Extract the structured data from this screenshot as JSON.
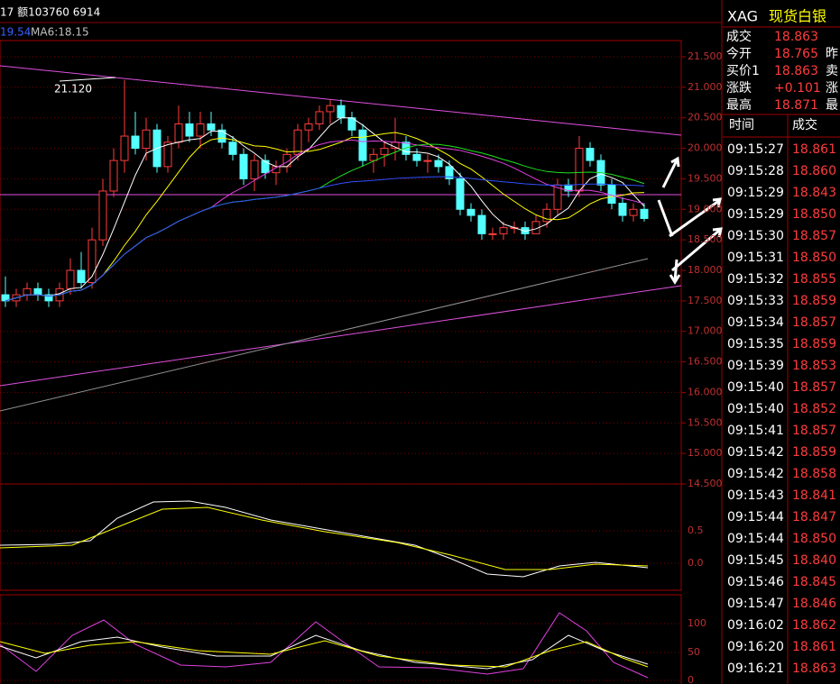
{
  "top": {
    "volume_text": "17 额103760 6914",
    "ma_blue": "19.54",
    "ma6": "MA6:18.15"
  },
  "price_chart": {
    "high_label": "21.120",
    "yticks": [
      {
        "value": 21.5,
        "label": "21.500"
      },
      {
        "value": 21.0,
        "label": "21.000"
      },
      {
        "value": 20.5,
        "label": "20.500"
      },
      {
        "value": 20.0,
        "label": "20.000"
      },
      {
        "value": 19.5,
        "label": "19.500"
      },
      {
        "value": 19.0,
        "label": "19.000"
      },
      {
        "value": 18.5,
        "label": "18.500"
      },
      {
        "value": 18.0,
        "label": "18.000"
      },
      {
        "value": 17.5,
        "label": "17.500"
      },
      {
        "value": 17.0,
        "label": "17.000"
      },
      {
        "value": 16.5,
        "label": "16.500"
      },
      {
        "value": 16.0,
        "label": "16.000"
      },
      {
        "value": 15.5,
        "label": "15.500"
      },
      {
        "value": 15.0,
        "label": "15.000"
      },
      {
        "value": 14.5,
        "label": "14.500"
      }
    ],
    "candles": [
      [
        17.6,
        17.9,
        17.4,
        17.5
      ],
      [
        17.5,
        17.7,
        17.4,
        17.6
      ],
      [
        17.6,
        17.8,
        17.5,
        17.7
      ],
      [
        17.7,
        17.8,
        17.5,
        17.6
      ],
      [
        17.6,
        17.7,
        17.4,
        17.5
      ],
      [
        17.5,
        17.8,
        17.4,
        17.7
      ],
      [
        17.7,
        18.2,
        17.6,
        18.0
      ],
      [
        18.0,
        18.3,
        17.7,
        17.8
      ],
      [
        17.8,
        18.7,
        17.7,
        18.5
      ],
      [
        18.5,
        19.5,
        18.4,
        19.3
      ],
      [
        19.3,
        20.0,
        19.2,
        19.8
      ],
      [
        19.8,
        21.12,
        19.6,
        20.2
      ],
      [
        20.2,
        20.6,
        19.9,
        20.0
      ],
      [
        20.0,
        20.5,
        19.8,
        20.3
      ],
      [
        20.3,
        20.4,
        19.6,
        19.7
      ],
      [
        19.7,
        20.2,
        19.6,
        20.1
      ],
      [
        20.1,
        20.7,
        20.0,
        20.4
      ],
      [
        20.4,
        20.6,
        20.1,
        20.2
      ],
      [
        20.2,
        20.6,
        20.0,
        20.4
      ],
      [
        20.4,
        20.6,
        20.2,
        20.3
      ],
      [
        20.3,
        20.4,
        20.0,
        20.1
      ],
      [
        20.1,
        20.2,
        19.8,
        19.9
      ],
      [
        19.9,
        20.0,
        19.4,
        19.5
      ],
      [
        19.5,
        19.9,
        19.3,
        19.8
      ],
      [
        19.8,
        19.9,
        19.5,
        19.6
      ],
      [
        19.6,
        19.8,
        19.4,
        19.7
      ],
      [
        19.7,
        20.0,
        19.6,
        19.9
      ],
      [
        19.9,
        20.4,
        19.8,
        20.3
      ],
      [
        20.3,
        20.5,
        20.1,
        20.4
      ],
      [
        20.4,
        20.7,
        20.3,
        20.6
      ],
      [
        20.6,
        20.8,
        20.4,
        20.7
      ],
      [
        20.7,
        20.8,
        20.4,
        20.5
      ],
      [
        20.5,
        20.6,
        20.2,
        20.3
      ],
      [
        20.3,
        20.4,
        19.7,
        19.8
      ],
      [
        19.8,
        20.0,
        19.6,
        19.9
      ],
      [
        19.9,
        20.1,
        19.7,
        20.0
      ],
      [
        20.0,
        20.5,
        19.8,
        20.1
      ],
      [
        20.1,
        20.2,
        19.8,
        19.9
      ],
      [
        19.9,
        20.0,
        19.7,
        19.8
      ],
      [
        19.8,
        19.9,
        19.6,
        19.8
      ],
      [
        19.8,
        19.9,
        19.6,
        19.7
      ],
      [
        19.7,
        19.8,
        19.4,
        19.5
      ],
      [
        19.5,
        19.6,
        18.9,
        19.0
      ],
      [
        19.0,
        19.1,
        18.8,
        18.9
      ],
      [
        18.9,
        19.0,
        18.5,
        18.6
      ],
      [
        18.6,
        18.7,
        18.5,
        18.6
      ],
      [
        18.6,
        18.8,
        18.5,
        18.7
      ],
      [
        18.7,
        18.8,
        18.6,
        18.7
      ],
      [
        18.7,
        18.8,
        18.5,
        18.6
      ],
      [
        18.6,
        18.9,
        18.6,
        18.8
      ],
      [
        18.8,
        19.1,
        18.7,
        19.0
      ],
      [
        19.0,
        19.5,
        18.9,
        19.4
      ],
      [
        19.4,
        19.5,
        19.2,
        19.3
      ],
      [
        19.3,
        20.2,
        19.2,
        20.0
      ],
      [
        20.0,
        20.1,
        19.7,
        19.8
      ],
      [
        19.8,
        19.9,
        19.3,
        19.4
      ],
      [
        19.4,
        19.5,
        19.0,
        19.1
      ],
      [
        19.1,
        19.2,
        18.8,
        18.9
      ],
      [
        18.9,
        19.1,
        18.8,
        19.0
      ],
      [
        19.0,
        19.1,
        18.8,
        18.85
      ]
    ]
  },
  "macd_panel": {
    "ticks": [
      "0.5",
      "0.0"
    ]
  },
  "kdj_panel": {
    "ticks": [
      "100",
      "50",
      "0"
    ]
  },
  "quote": {
    "symbol": "XAG",
    "name": "现货白银",
    "rows": [
      [
        "成交",
        "18.863",
        ""
      ],
      [
        "今开",
        "18.765",
        "昨"
      ],
      [
        "买价1",
        "18.863",
        "卖"
      ],
      [
        "涨跌",
        "+0.101",
        "涨"
      ],
      [
        "最高",
        "18.871",
        "最"
      ]
    ]
  },
  "trades": {
    "header": [
      "时间",
      "成交"
    ],
    "rows": [
      [
        "09:15:27",
        "18.861"
      ],
      [
        "09:15:28",
        "18.860"
      ],
      [
        "09:15:29",
        "18.843"
      ],
      [
        "09:15:29",
        "18.850"
      ],
      [
        "09:15:30",
        "18.857"
      ],
      [
        "09:15:31",
        "18.850"
      ],
      [
        "09:15:32",
        "18.855"
      ],
      [
        "09:15:33",
        "18.859"
      ],
      [
        "09:15:34",
        "18.857"
      ],
      [
        "09:15:35",
        "18.859"
      ],
      [
        "09:15:39",
        "18.853"
      ],
      [
        "09:15:40",
        "18.857"
      ],
      [
        "09:15:40",
        "18.852"
      ],
      [
        "09:15:41",
        "18.857"
      ],
      [
        "09:15:42",
        "18.859"
      ],
      [
        "09:15:42",
        "18.858"
      ],
      [
        "09:15:43",
        "18.841"
      ],
      [
        "09:15:44",
        "18.847"
      ],
      [
        "09:15:44",
        "18.850"
      ],
      [
        "09:15:45",
        "18.840"
      ],
      [
        "09:15:46",
        "18.845"
      ],
      [
        "09:15:47",
        "18.846"
      ],
      [
        "09:16:02",
        "18.862"
      ],
      [
        "09:16:20",
        "18.861"
      ],
      [
        "09:16:21",
        "18.863"
      ]
    ]
  }
}
